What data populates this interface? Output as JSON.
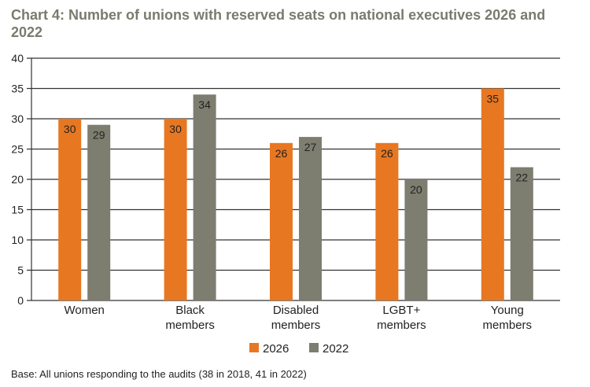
{
  "title": "Chart 4: Number of unions with reserved seats on national executives 2026 and 2022",
  "footnote": "Base: All unions responding to the audits (38 in 2018, 41 in 2022)",
  "colors": {
    "series_2026": "#e87722",
    "series_2022": "#7d7d70",
    "axis": "#333333"
  },
  "chart_data": {
    "type": "bar",
    "categories": [
      [
        "Women"
      ],
      [
        "Black",
        "members"
      ],
      [
        "Disabled",
        "members"
      ],
      [
        "LGBT+",
        "members"
      ],
      [
        "Young",
        "members"
      ]
    ],
    "series": [
      {
        "name": "2026",
        "values": [
          30,
          30,
          26,
          26,
          35
        ]
      },
      {
        "name": "2022",
        "values": [
          29,
          34,
          27,
          20,
          22
        ]
      }
    ],
    "ylim": [
      0,
      40
    ],
    "yticks": [
      0,
      5,
      10,
      15,
      20,
      25,
      30,
      35,
      40
    ],
    "grid": true,
    "legend": "bottom"
  }
}
